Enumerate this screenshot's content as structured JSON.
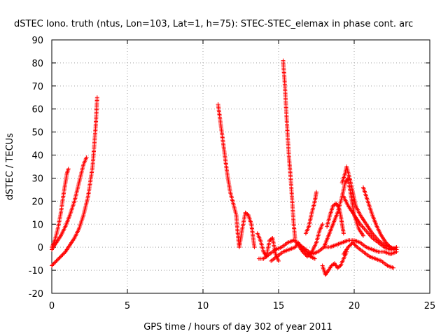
{
  "chart_data": {
    "type": "scatter",
    "title": "dSTEC Iono. truth (ntus, Lon=103, Lat=1, h=75): STEC-STEC_elemax in phase cont. arc",
    "xlabel": "GPS time / hours of day 302 of year 2011",
    "ylabel": "dSTEC  / TECUs",
    "xlim": [
      0,
      25
    ],
    "ylim": [
      -20,
      90
    ],
    "xticks": [
      "0",
      "5",
      "10",
      "15",
      "20",
      "25"
    ],
    "yticks": [
      "-20",
      "-10",
      "0",
      "10",
      "20",
      "30",
      "40",
      "50",
      "60",
      "70",
      "80",
      "90"
    ],
    "grid": true,
    "marker": "+",
    "color": "#ff0000",
    "series": [
      {
        "points": [
          [
            0.0,
            0
          ],
          [
            0.2,
            3
          ],
          [
            0.4,
            8
          ],
          [
            0.6,
            15
          ],
          [
            0.8,
            24
          ],
          [
            1.0,
            32
          ],
          [
            1.1,
            34
          ]
        ]
      },
      {
        "points": [
          [
            0.0,
            -1
          ],
          [
            0.3,
            2
          ],
          [
            0.6,
            5
          ],
          [
            0.9,
            9
          ],
          [
            1.2,
            14
          ],
          [
            1.5,
            20
          ],
          [
            1.8,
            28
          ],
          [
            2.1,
            36
          ],
          [
            2.3,
            39
          ]
        ]
      },
      {
        "points": [
          [
            0.0,
            -8
          ],
          [
            0.3,
            -6
          ],
          [
            0.6,
            -4
          ],
          [
            0.9,
            -2
          ],
          [
            1.2,
            1
          ],
          [
            1.5,
            4
          ],
          [
            1.8,
            8
          ],
          [
            2.1,
            14
          ],
          [
            2.4,
            22
          ],
          [
            2.7,
            35
          ],
          [
            2.9,
            52
          ],
          [
            3.0,
            65
          ]
        ]
      },
      {
        "points": [
          [
            11.0,
            62
          ],
          [
            11.2,
            52
          ],
          [
            11.4,
            42
          ],
          [
            11.6,
            32
          ],
          [
            11.8,
            24
          ],
          [
            12.0,
            19
          ],
          [
            12.2,
            14
          ],
          [
            12.3,
            6
          ],
          [
            12.4,
            0
          ],
          [
            12.6,
            8
          ],
          [
            12.8,
            15
          ],
          [
            13.0,
            14
          ],
          [
            13.2,
            10
          ],
          [
            13.3,
            5
          ],
          [
            13.4,
            0
          ]
        ]
      },
      {
        "points": [
          [
            13.6,
            6
          ],
          [
            13.8,
            3
          ],
          [
            14.0,
            -2
          ],
          [
            14.2,
            -4
          ],
          [
            14.4,
            3
          ],
          [
            14.6,
            4
          ],
          [
            14.8,
            -3
          ],
          [
            15.0,
            -6
          ]
        ]
      },
      {
        "points": [
          [
            13.7,
            -5
          ],
          [
            14.0,
            -5
          ],
          [
            14.4,
            -3
          ],
          [
            14.8,
            -1
          ],
          [
            15.2,
            0
          ],
          [
            15.6,
            2
          ],
          [
            16.0,
            3
          ],
          [
            16.4,
            1
          ],
          [
            16.8,
            -1
          ],
          [
            17.2,
            -3
          ],
          [
            17.6,
            -2
          ],
          [
            18.0,
            0
          ],
          [
            18.4,
            0
          ],
          [
            18.8,
            1
          ],
          [
            19.2,
            2
          ],
          [
            19.6,
            3
          ],
          [
            20.0,
            3
          ],
          [
            20.4,
            2
          ],
          [
            20.8,
            0
          ],
          [
            21.2,
            -1
          ],
          [
            21.6,
            -2
          ],
          [
            22.0,
            -2
          ],
          [
            22.4,
            -3
          ],
          [
            22.8,
            -2
          ]
        ]
      },
      {
        "points": [
          [
            15.3,
            81
          ],
          [
            15.4,
            72
          ],
          [
            15.5,
            60
          ],
          [
            15.6,
            48
          ],
          [
            15.7,
            38
          ],
          [
            15.8,
            30
          ],
          [
            15.9,
            20
          ],
          [
            16.0,
            10
          ],
          [
            16.1,
            3
          ]
        ]
      },
      {
        "points": [
          [
            14.5,
            -6
          ],
          [
            14.9,
            -4
          ],
          [
            15.3,
            -2
          ],
          [
            15.7,
            -1
          ],
          [
            16.1,
            0
          ],
          [
            16.3,
            2
          ],
          [
            16.5,
            0
          ],
          [
            16.8,
            -2
          ],
          [
            17.1,
            -4
          ],
          [
            17.4,
            -5
          ]
        ]
      },
      {
        "points": [
          [
            16.3,
            1
          ],
          [
            16.6,
            -2
          ],
          [
            16.9,
            -4
          ],
          [
            17.2,
            -2
          ],
          [
            17.5,
            2
          ],
          [
            17.7,
            7
          ],
          [
            17.9,
            10
          ]
        ]
      },
      {
        "points": [
          [
            16.8,
            6
          ],
          [
            17.0,
            9
          ],
          [
            17.2,
            15
          ],
          [
            17.4,
            20
          ],
          [
            17.5,
            24
          ]
        ]
      },
      {
        "points": [
          [
            17.9,
            -8
          ],
          [
            18.1,
            -12
          ],
          [
            18.3,
            -10
          ],
          [
            18.5,
            -8
          ],
          [
            18.7,
            -7
          ],
          [
            18.9,
            -9
          ],
          [
            19.1,
            -8
          ],
          [
            19.3,
            -5
          ],
          [
            19.5,
            -2
          ]
        ]
      },
      {
        "points": [
          [
            18.0,
            0
          ],
          [
            18.3,
            5
          ],
          [
            18.6,
            10
          ],
          [
            18.9,
            15
          ],
          [
            19.2,
            22
          ],
          [
            19.4,
            28
          ],
          [
            19.6,
            30
          ],
          [
            19.8,
            22
          ],
          [
            20.0,
            14
          ],
          [
            20.3,
            8
          ],
          [
            20.6,
            5
          ]
        ]
      },
      {
        "points": [
          [
            18.2,
            9
          ],
          [
            18.4,
            14
          ],
          [
            18.6,
            18
          ],
          [
            18.8,
            19
          ],
          [
            19.0,
            17
          ],
          [
            19.1,
            14
          ],
          [
            19.2,
            10
          ],
          [
            19.3,
            6
          ]
        ]
      },
      {
        "points": [
          [
            19.2,
            28
          ],
          [
            19.4,
            32
          ],
          [
            19.5,
            35
          ],
          [
            19.7,
            30
          ],
          [
            19.9,
            24
          ],
          [
            20.1,
            18
          ],
          [
            20.4,
            14
          ],
          [
            20.8,
            10
          ],
          [
            21.2,
            6
          ],
          [
            21.6,
            3
          ],
          [
            22.0,
            1
          ],
          [
            22.4,
            0
          ],
          [
            22.8,
            -1
          ]
        ]
      },
      {
        "points": [
          [
            19.3,
            22
          ],
          [
            19.6,
            18
          ],
          [
            20.0,
            14
          ],
          [
            20.4,
            10
          ],
          [
            20.8,
            7
          ],
          [
            21.2,
            4
          ],
          [
            21.6,
            2
          ],
          [
            22.0,
            0
          ],
          [
            22.4,
            -1
          ],
          [
            22.8,
            0
          ]
        ]
      },
      {
        "points": [
          [
            19.3,
            -3
          ],
          [
            19.6,
            0
          ],
          [
            19.9,
            2
          ],
          [
            20.2,
            0
          ],
          [
            20.6,
            -2
          ],
          [
            21.0,
            -4
          ],
          [
            21.4,
            -5
          ],
          [
            21.8,
            -6
          ],
          [
            22.2,
            -8
          ],
          [
            22.6,
            -9
          ]
        ]
      },
      {
        "points": [
          [
            20.6,
            26
          ],
          [
            20.9,
            20
          ],
          [
            21.2,
            14
          ],
          [
            21.5,
            9
          ],
          [
            21.8,
            5
          ],
          [
            22.1,
            2
          ],
          [
            22.4,
            0
          ],
          [
            22.7,
            -1
          ]
        ]
      }
    ]
  }
}
